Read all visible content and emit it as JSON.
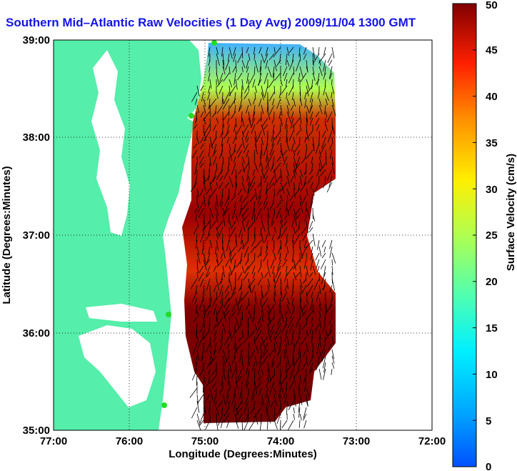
{
  "title": "Southern Mid–Atlantic Raw Velocities (1 Day Avg) 2009/11/04 1300 GMT",
  "map": {
    "xlabel": "Longitude (Degrees:Minutes)",
    "ylabel": "Latitude (Degrees:Minutes)",
    "lon_range": [
      -77,
      -72
    ],
    "lat_range": [
      35,
      39
    ],
    "x_ticks": [
      "77:00",
      "76:00",
      "75:00",
      "74:00",
      "73:00",
      "72:00"
    ],
    "y_ticks": [
      "39:00",
      "38:00",
      "37:00",
      "36:00",
      "35:00"
    ],
    "grid": "dotted",
    "land_color": "#55eeaa",
    "station_color": "#22dd22",
    "vector_color": "#000000"
  },
  "colorbar": {
    "label": "Surface Velocity (cm/s)",
    "range": [
      0,
      50
    ],
    "ticks": [
      "0",
      "5",
      "10",
      "15",
      "20",
      "25",
      "30",
      "35",
      "40",
      "45",
      "50"
    ],
    "colormap": "jet"
  }
}
